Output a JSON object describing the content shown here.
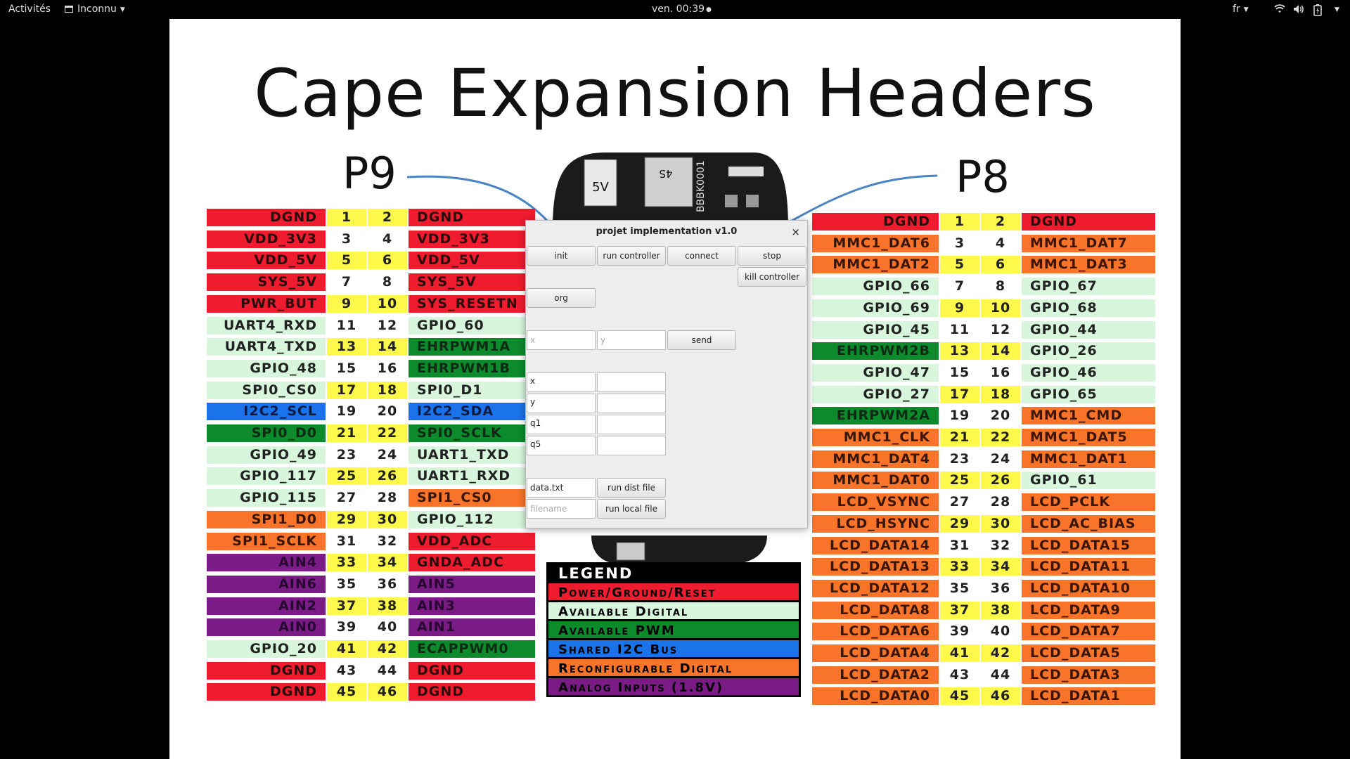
{
  "topbar": {
    "activities": "Activités",
    "app_menu": "Inconnu",
    "clock": "ven. 00:39",
    "language": "fr"
  },
  "slide": {
    "title": "Cape Expansion Headers",
    "p9_label": "P9",
    "p8_label": "P8",
    "board_labels": {
      "power_jack": "5V",
      "chip": "4S",
      "serial": "BBBK0001"
    }
  },
  "colors": {
    "red": "#ee1c2e",
    "lgreen": "#d7f6dc",
    "dgreen": "#0d8a2c",
    "blue": "#1a73e8",
    "orange": "#f7742a",
    "purple": "#7a1b86",
    "yellow": "#fef84a",
    "white": "#ffffff"
  },
  "p9": [
    {
      "l": "DGND",
      "a": "1",
      "b": "2",
      "r": "DGND",
      "lc": "red",
      "nc": "yellow",
      "rc": "red"
    },
    {
      "l": "VDD_3V3",
      "a": "3",
      "b": "4",
      "r": "VDD_3V3",
      "lc": "red",
      "nc": "white",
      "rc": "red"
    },
    {
      "l": "VDD_5V",
      "a": "5",
      "b": "6",
      "r": "VDD_5V",
      "lc": "red",
      "nc": "yellow",
      "rc": "red"
    },
    {
      "l": "SYS_5V",
      "a": "7",
      "b": "8",
      "r": "SYS_5V",
      "lc": "red",
      "nc": "white",
      "rc": "red"
    },
    {
      "l": "PWR_BUT",
      "a": "9",
      "b": "10",
      "r": "SYS_RESETN",
      "lc": "red",
      "nc": "yellow",
      "rc": "red"
    },
    {
      "l": "UART4_RXD",
      "a": "11",
      "b": "12",
      "r": "GPIO_60",
      "lc": "lgreen",
      "nc": "white",
      "rc": "lgreen"
    },
    {
      "l": "UART4_TXD",
      "a": "13",
      "b": "14",
      "r": "EHRPWM1A",
      "lc": "lgreen",
      "nc": "yellow",
      "rc": "dgreen"
    },
    {
      "l": "GPIO_48",
      "a": "15",
      "b": "16",
      "r": "EHRPWM1B",
      "lc": "lgreen",
      "nc": "white",
      "rc": "dgreen"
    },
    {
      "l": "SPI0_CS0",
      "a": "17",
      "b": "18",
      "r": "SPI0_D1",
      "lc": "lgreen",
      "nc": "yellow",
      "rc": "lgreen"
    },
    {
      "l": "I2C2_SCL",
      "a": "19",
      "b": "20",
      "r": "I2C2_SDA",
      "lc": "blue",
      "nc": "white",
      "rc": "blue"
    },
    {
      "l": "SPI0_D0",
      "a": "21",
      "b": "22",
      "r": "SPI0_SCLK",
      "lc": "dgreen",
      "nc": "yellow",
      "rc": "dgreen"
    },
    {
      "l": "GPIO_49",
      "a": "23",
      "b": "24",
      "r": "UART1_TXD",
      "lc": "lgreen",
      "nc": "white",
      "rc": "lgreen"
    },
    {
      "l": "GPIO_117",
      "a": "25",
      "b": "26",
      "r": "UART1_RXD",
      "lc": "lgreen",
      "nc": "yellow",
      "rc": "lgreen"
    },
    {
      "l": "GPIO_115",
      "a": "27",
      "b": "28",
      "r": "SPI1_CS0",
      "lc": "lgreen",
      "nc": "white",
      "rc": "orange"
    },
    {
      "l": "SPI1_D0",
      "a": "29",
      "b": "30",
      "r": "GPIO_112",
      "lc": "orange",
      "nc": "yellow",
      "rc": "lgreen"
    },
    {
      "l": "SPI1_SCLK",
      "a": "31",
      "b": "32",
      "r": "VDD_ADC",
      "lc": "orange",
      "nc": "white",
      "rc": "red"
    },
    {
      "l": "AIN4",
      "a": "33",
      "b": "34",
      "r": "GNDA_ADC",
      "lc": "purple",
      "nc": "yellow",
      "rc": "red"
    },
    {
      "l": "AIN6",
      "a": "35",
      "b": "36",
      "r": "AIN5",
      "lc": "purple",
      "nc": "white",
      "rc": "purple"
    },
    {
      "l": "AIN2",
      "a": "37",
      "b": "38",
      "r": "AIN3",
      "lc": "purple",
      "nc": "yellow",
      "rc": "purple"
    },
    {
      "l": "AIN0",
      "a": "39",
      "b": "40",
      "r": "AIN1",
      "lc": "purple",
      "nc": "white",
      "rc": "purple"
    },
    {
      "l": "GPIO_20",
      "a": "41",
      "b": "42",
      "r": "ECAPPWM0",
      "lc": "lgreen",
      "nc": "yellow",
      "rc": "dgreen"
    },
    {
      "l": "DGND",
      "a": "43",
      "b": "44",
      "r": "DGND",
      "lc": "red",
      "nc": "white",
      "rc": "red"
    },
    {
      "l": "DGND",
      "a": "45",
      "b": "46",
      "r": "DGND",
      "lc": "red",
      "nc": "yellow",
      "rc": "red"
    }
  ],
  "p8": [
    {
      "l": "DGND",
      "a": "1",
      "b": "2",
      "r": "DGND",
      "lc": "red",
      "nc": "yellow",
      "rc": "red"
    },
    {
      "l": "MMC1_DAT6",
      "a": "3",
      "b": "4",
      "r": "MMC1_DAT7",
      "lc": "orange",
      "nc": "white",
      "rc": "orange"
    },
    {
      "l": "MMC1_DAT2",
      "a": "5",
      "b": "6",
      "r": "MMC1_DAT3",
      "lc": "orange",
      "nc": "yellow",
      "rc": "orange"
    },
    {
      "l": "GPIO_66",
      "a": "7",
      "b": "8",
      "r": "GPIO_67",
      "lc": "lgreen",
      "nc": "white",
      "rc": "lgreen"
    },
    {
      "l": "GPIO_69",
      "a": "9",
      "b": "10",
      "r": "GPIO_68",
      "lc": "lgreen",
      "nc": "yellow",
      "rc": "lgreen"
    },
    {
      "l": "GPIO_45",
      "a": "11",
      "b": "12",
      "r": "GPIO_44",
      "lc": "lgreen",
      "nc": "white",
      "rc": "lgreen"
    },
    {
      "l": "EHRPWM2B",
      "a": "13",
      "b": "14",
      "r": "GPIO_26",
      "lc": "dgreen",
      "nc": "yellow",
      "rc": "lgreen"
    },
    {
      "l": "GPIO_47",
      "a": "15",
      "b": "16",
      "r": "GPIO_46",
      "lc": "lgreen",
      "nc": "white",
      "rc": "lgreen"
    },
    {
      "l": "GPIO_27",
      "a": "17",
      "b": "18",
      "r": "GPIO_65",
      "lc": "lgreen",
      "nc": "yellow",
      "rc": "lgreen"
    },
    {
      "l": "EHRPWM2A",
      "a": "19",
      "b": "20",
      "r": "MMC1_CMD",
      "lc": "dgreen",
      "nc": "white",
      "rc": "orange"
    },
    {
      "l": "MMC1_CLK",
      "a": "21",
      "b": "22",
      "r": "MMC1_DAT5",
      "lc": "orange",
      "nc": "yellow",
      "rc": "orange"
    },
    {
      "l": "MMC1_DAT4",
      "a": "23",
      "b": "24",
      "r": "MMC1_DAT1",
      "lc": "orange",
      "nc": "white",
      "rc": "orange"
    },
    {
      "l": "MMC1_DAT0",
      "a": "25",
      "b": "26",
      "r": "GPIO_61",
      "lc": "orange",
      "nc": "yellow",
      "rc": "lgreen"
    },
    {
      "l": "LCD_VSYNC",
      "a": "27",
      "b": "28",
      "r": "LCD_PCLK",
      "lc": "orange",
      "nc": "white",
      "rc": "orange"
    },
    {
      "l": "LCD_HSYNC",
      "a": "29",
      "b": "30",
      "r": "LCD_AC_BIAS",
      "lc": "orange",
      "nc": "yellow",
      "rc": "orange"
    },
    {
      "l": "LCD_DATA14",
      "a": "31",
      "b": "32",
      "r": "LCD_DATA15",
      "lc": "orange",
      "nc": "white",
      "rc": "orange"
    },
    {
      "l": "LCD_DATA13",
      "a": "33",
      "b": "34",
      "r": "LCD_DATA11",
      "lc": "orange",
      "nc": "yellow",
      "rc": "orange"
    },
    {
      "l": "LCD_DATA12",
      "a": "35",
      "b": "36",
      "r": "LCD_DATA10",
      "lc": "orange",
      "nc": "white",
      "rc": "orange"
    },
    {
      "l": "LCD_DATA8",
      "a": "37",
      "b": "38",
      "r": "LCD_DATA9",
      "lc": "orange",
      "nc": "yellow",
      "rc": "orange"
    },
    {
      "l": "LCD_DATA6",
      "a": "39",
      "b": "40",
      "r": "LCD_DATA7",
      "lc": "orange",
      "nc": "white",
      "rc": "orange"
    },
    {
      "l": "LCD_DATA4",
      "a": "41",
      "b": "42",
      "r": "LCD_DATA5",
      "lc": "orange",
      "nc": "yellow",
      "rc": "orange"
    },
    {
      "l": "LCD_DATA2",
      "a": "43",
      "b": "44",
      "r": "LCD_DATA3",
      "lc": "orange",
      "nc": "white",
      "rc": "orange"
    },
    {
      "l": "LCD_DATA0",
      "a": "45",
      "b": "46",
      "r": "LCD_DATA1",
      "lc": "orange",
      "nc": "yellow",
      "rc": "orange"
    }
  ],
  "legend": {
    "title": "LEGEND",
    "items": [
      {
        "label": "Power/Ground/Reset",
        "color": "red"
      },
      {
        "label": "Available Digital",
        "color": "lgreen"
      },
      {
        "label": "Available PWM",
        "color": "dgreen"
      },
      {
        "label": "Shared I2C Bus",
        "color": "blue"
      },
      {
        "label": "Reconfigurable Digital",
        "color": "orange"
      },
      {
        "label": "Analog Inputs (1.8V)",
        "color": "purple"
      }
    ]
  },
  "dialog": {
    "title": "projet implementation v1.0",
    "close": "×",
    "buttons": {
      "init": "init",
      "run_controller": "run controller",
      "connect": "connect",
      "stop": "stop",
      "kill_controller": "kill controller",
      "org": "org",
      "send": "send",
      "run_dist_file": "run dist file",
      "run_local_file": "run local file"
    },
    "inputs": {
      "x_placeholder": "x",
      "y_placeholder": "y",
      "data_file_value": "data.txt",
      "filename_placeholder": "filename"
    },
    "readouts": [
      {
        "label": "x",
        "value": ""
      },
      {
        "label": "y",
        "value": ""
      },
      {
        "label": "q1",
        "value": ""
      },
      {
        "label": "q5",
        "value": ""
      }
    ]
  }
}
